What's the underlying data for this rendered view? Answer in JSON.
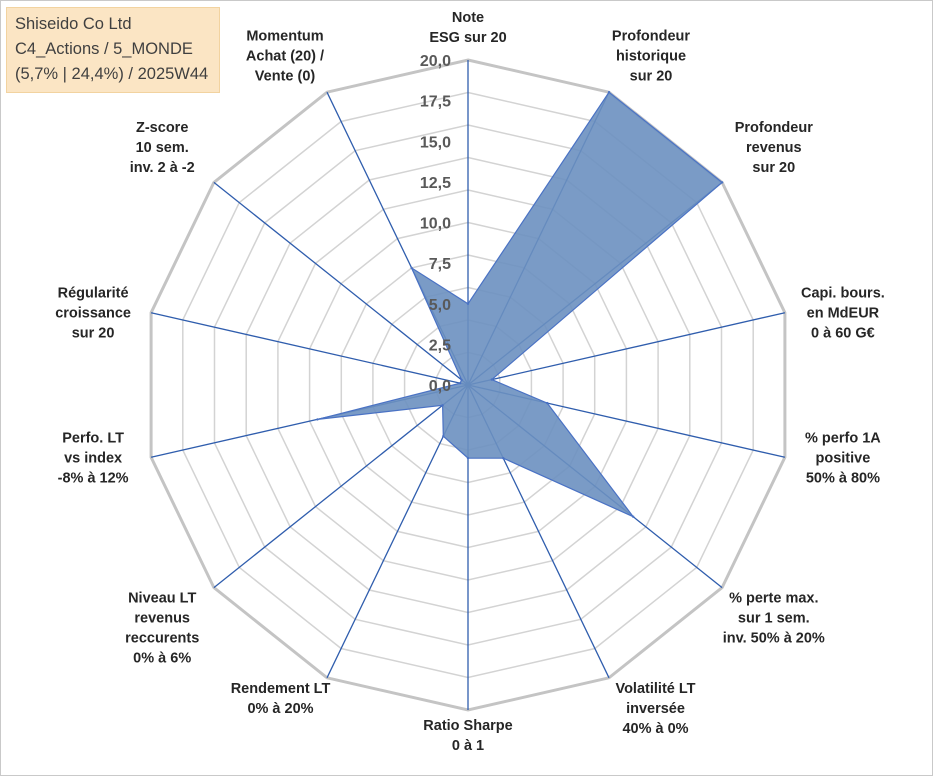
{
  "info_box": {
    "line1": "Shiseido Co Ltd",
    "line2": "C4_Actions / 5_MONDE",
    "line3": "(5,7% | 24,4%) / 2025W44"
  },
  "chart_data": {
    "type": "radar",
    "title": "",
    "rmin": 0,
    "rmax": 20,
    "ticks": [
      "0,0",
      "2,5",
      "5,0",
      "7,5",
      "10,0",
      "12,5",
      "15,0",
      "17,5",
      "20,0"
    ],
    "tick_values": [
      0,
      2.5,
      5,
      7.5,
      10,
      12.5,
      15,
      17.5,
      20
    ],
    "grid_levels": 10,
    "colors": {
      "fill": "#6b90c0",
      "stroke": "#4a72c4",
      "axis": "#2f5dad",
      "grid": "#d3d3d3",
      "outer": "#c4c4c4"
    },
    "axes": [
      {
        "lines": [
          "Note",
          "ESG sur 20"
        ],
        "value": 5.0
      },
      {
        "lines": [
          "Profondeur",
          "historique",
          "sur 20"
        ],
        "value": 20.0
      },
      {
        "lines": [
          "Profondeur",
          "revenus",
          "sur 20"
        ],
        "value": 20.0
      },
      {
        "lines": [
          "Capi. bours.",
          "en MdEUR",
          "0 à 60 G€"
        ],
        "value": 1.5
      },
      {
        "lines": [
          "% perfo 1A",
          "positive",
          "50% à 80%"
        ],
        "value": 5.0
      },
      {
        "lines": [
          "% perte max.",
          "sur 1 sem.",
          "inv. 50% à 20%"
        ],
        "value": 13.0
      },
      {
        "lines": [
          "Volatilité LT",
          "inversée",
          "40% à 0%"
        ],
        "value": 5.0
      },
      {
        "lines": [
          "Ratio Sharpe",
          "0 à 1"
        ],
        "value": 4.5
      },
      {
        "lines": [
          "Rendement LT",
          "0% à 20%"
        ],
        "value": 3.5
      },
      {
        "lines": [
          "Niveau LT",
          "revenus",
          "reccurents",
          "0% à 6%"
        ],
        "value": 2.0
      },
      {
        "lines": [
          "Perfo. LT",
          "vs index",
          "-8% à 12%"
        ],
        "value": 9.5
      },
      {
        "lines": [
          "Régularité",
          "croissance",
          "sur 20"
        ],
        "value": 0.5
      },
      {
        "lines": [
          "Z-score",
          "10 sem.",
          "inv. 2 à -2"
        ],
        "value": 0.5
      },
      {
        "lines": [
          "Momentum",
          "Achat (20) /",
          "Vente (0)"
        ],
        "value": 8.0
      }
    ]
  }
}
